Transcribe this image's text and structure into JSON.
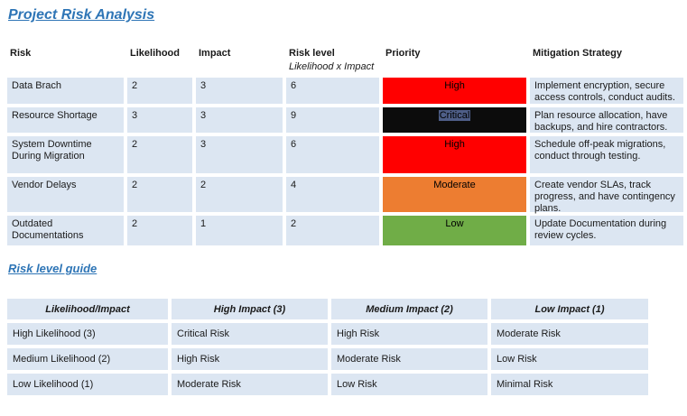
{
  "page": {
    "title": "Project Risk Analysis",
    "guide_heading": "Risk level guide"
  },
  "colors": {
    "heading_blue": "#2E75B6",
    "cell_blue": "#DCE6F2",
    "priority_high": "#FF0000",
    "priority_critical": "#0C0C0C",
    "priority_moderate": "#ED7D31",
    "priority_low": "#70AD47",
    "selection_highlight": "#4E5E87"
  },
  "risk_table": {
    "headers": {
      "risk": "Risk",
      "likelihood": "Likelihood",
      "impact": "Impact",
      "risk_level": "Risk level",
      "risk_level_sub": "Likelihood x Impact",
      "priority": "Priority",
      "mitigation": "Mitigation Strategy"
    },
    "rows": [
      {
        "risk": "Data Brach",
        "likelihood": "2",
        "impact": "3",
        "risk_level": "6",
        "priority": "High",
        "priority_color": "#FF0000",
        "mitigation": "Implement encryption, secure access controls, conduct audits."
      },
      {
        "risk": "Resource Shortage",
        "likelihood": "3",
        "impact": "3",
        "risk_level": "9",
        "priority": "Critical",
        "priority_color": "#0C0C0C",
        "mitigation": "Plan resource allocation, have backups, and hire contractors."
      },
      {
        "risk": "System Downtime During Migration",
        "likelihood": "2",
        "impact": "3",
        "risk_level": "6",
        "priority": "High",
        "priority_color": "#FF0000",
        "mitigation": "Schedule off-peak migrations, conduct through testing."
      },
      {
        "risk": "Vendor Delays",
        "likelihood": "2",
        "impact": "2",
        "risk_level": "4",
        "priority": "Moderate",
        "priority_color": "#ED7D31",
        "mitigation": "Create vendor SLAs, track progress, and have contingency plans."
      },
      {
        "risk": "Outdated Documentations",
        "likelihood": "2",
        "impact": "1",
        "risk_level": "2",
        "priority": "Low",
        "priority_color": "#70AD47",
        "mitigation": "Update Documentation during review cycles."
      }
    ]
  },
  "guide_table": {
    "headers": [
      "Likelihood/Impact",
      "High Impact (3)",
      "Medium Impact (2)",
      "Low Impact (1)"
    ],
    "rows": [
      [
        "High Likelihood (3)",
        "Critical Risk",
        "High Risk",
        "Moderate Risk"
      ],
      [
        "Medium Likelihood (2)",
        "High Risk",
        "Moderate Risk",
        "Low Risk"
      ],
      [
        "Low Likelihood (1)",
        "Moderate Risk",
        "Low Risk",
        "Minimal Risk"
      ]
    ]
  }
}
